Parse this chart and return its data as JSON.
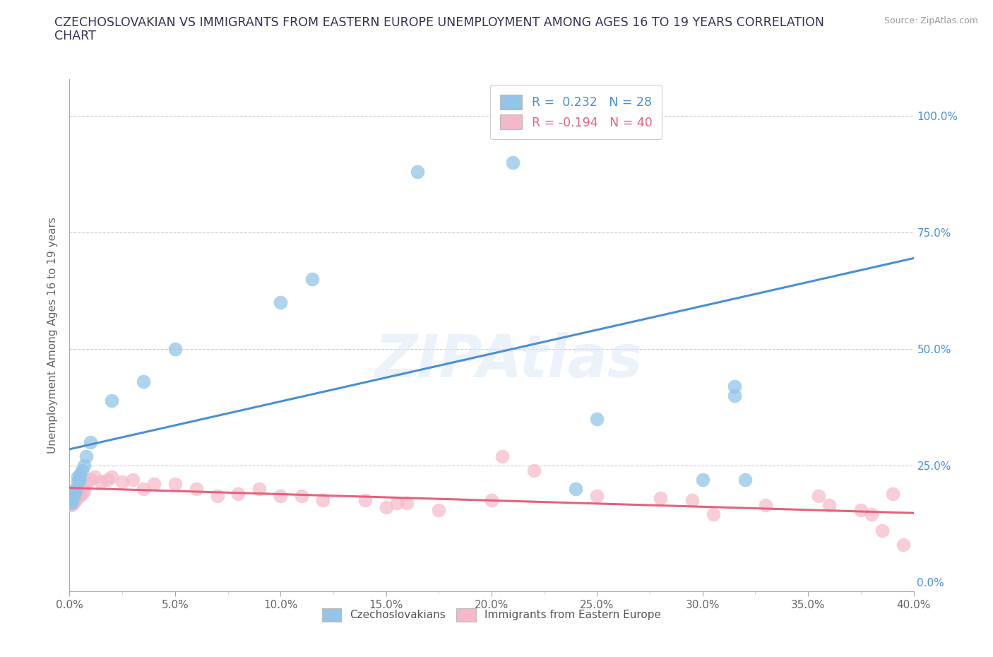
{
  "title_line1": "CZECHOSLOVAKIAN VS IMMIGRANTS FROM EASTERN EUROPE UNEMPLOYMENT AMONG AGES 16 TO 19 YEARS CORRELATION",
  "title_line2": "CHART",
  "source_text": "Source: ZipAtlas.com",
  "ylabel": "Unemployment Among Ages 16 to 19 years",
  "xlim": [
    0.0,
    0.4
  ],
  "ylim": [
    -0.02,
    1.08
  ],
  "xtick_labels": [
    "0.0%",
    "",
    "5.0%",
    "",
    "10.0%",
    "",
    "15.0%",
    "",
    "20.0%",
    "",
    "25.0%",
    "",
    "30.0%",
    "",
    "35.0%",
    "",
    "40.0%"
  ],
  "xtick_values": [
    0.0,
    0.025,
    0.05,
    0.075,
    0.1,
    0.125,
    0.15,
    0.175,
    0.2,
    0.225,
    0.25,
    0.275,
    0.3,
    0.325,
    0.35,
    0.375,
    0.4
  ],
  "ytick_labels": [
    "25.0%",
    "50.0%",
    "75.0%",
    "100.0%"
  ],
  "ytick_values": [
    0.25,
    0.5,
    0.75,
    1.0
  ],
  "blue_color": "#92C5E8",
  "pink_color": "#F5B8C8",
  "blue_line_color": "#4A8FD4",
  "pink_line_color": "#E8607A",
  "blue_line_x0": 0.0,
  "blue_line_y0": 0.285,
  "blue_line_x1": 0.4,
  "blue_line_y1": 0.695,
  "pink_line_x0": 0.0,
  "pink_line_y0": 0.202,
  "pink_line_x1": 0.4,
  "pink_line_y1": 0.148,
  "watermark": "ZIPAtlas",
  "blue_scatter_x": [
    0.001,
    0.001,
    0.001,
    0.002,
    0.002,
    0.003,
    0.003,
    0.004,
    0.004,
    0.005,
    0.005,
    0.006,
    0.007,
    0.008,
    0.01,
    0.02,
    0.035,
    0.05,
    0.1,
    0.115,
    0.165,
    0.21,
    0.24,
    0.25,
    0.3,
    0.315,
    0.315,
    0.32
  ],
  "blue_scatter_y": [
    0.17,
    0.175,
    0.18,
    0.18,
    0.19,
    0.195,
    0.2,
    0.215,
    0.225,
    0.22,
    0.23,
    0.24,
    0.25,
    0.27,
    0.3,
    0.39,
    0.43,
    0.5,
    0.6,
    0.65,
    0.88,
    0.9,
    0.2,
    0.35,
    0.22,
    0.4,
    0.42,
    0.22
  ],
  "pink_scatter_x": [
    0.001,
    0.001,
    0.001,
    0.002,
    0.002,
    0.003,
    0.003,
    0.004,
    0.005,
    0.005,
    0.006,
    0.007,
    0.008,
    0.01,
    0.012,
    0.015,
    0.018,
    0.02,
    0.025,
    0.03,
    0.035,
    0.04,
    0.05,
    0.06,
    0.07,
    0.08,
    0.09,
    0.1,
    0.11,
    0.12,
    0.14,
    0.15,
    0.155,
    0.16,
    0.175,
    0.2,
    0.205,
    0.22,
    0.25,
    0.28,
    0.295,
    0.305,
    0.33,
    0.355,
    0.36,
    0.375,
    0.38,
    0.385,
    0.39,
    0.395
  ],
  "pink_scatter_y": [
    0.165,
    0.17,
    0.175,
    0.17,
    0.18,
    0.175,
    0.185,
    0.185,
    0.185,
    0.19,
    0.19,
    0.195,
    0.21,
    0.22,
    0.225,
    0.215,
    0.22,
    0.225,
    0.215,
    0.22,
    0.2,
    0.21,
    0.21,
    0.2,
    0.185,
    0.19,
    0.2,
    0.185,
    0.185,
    0.175,
    0.175,
    0.16,
    0.17,
    0.17,
    0.155,
    0.175,
    0.27,
    0.24,
    0.185,
    0.18,
    0.175,
    0.145,
    0.165,
    0.185,
    0.165,
    0.155,
    0.145,
    0.11,
    0.19,
    0.08
  ]
}
